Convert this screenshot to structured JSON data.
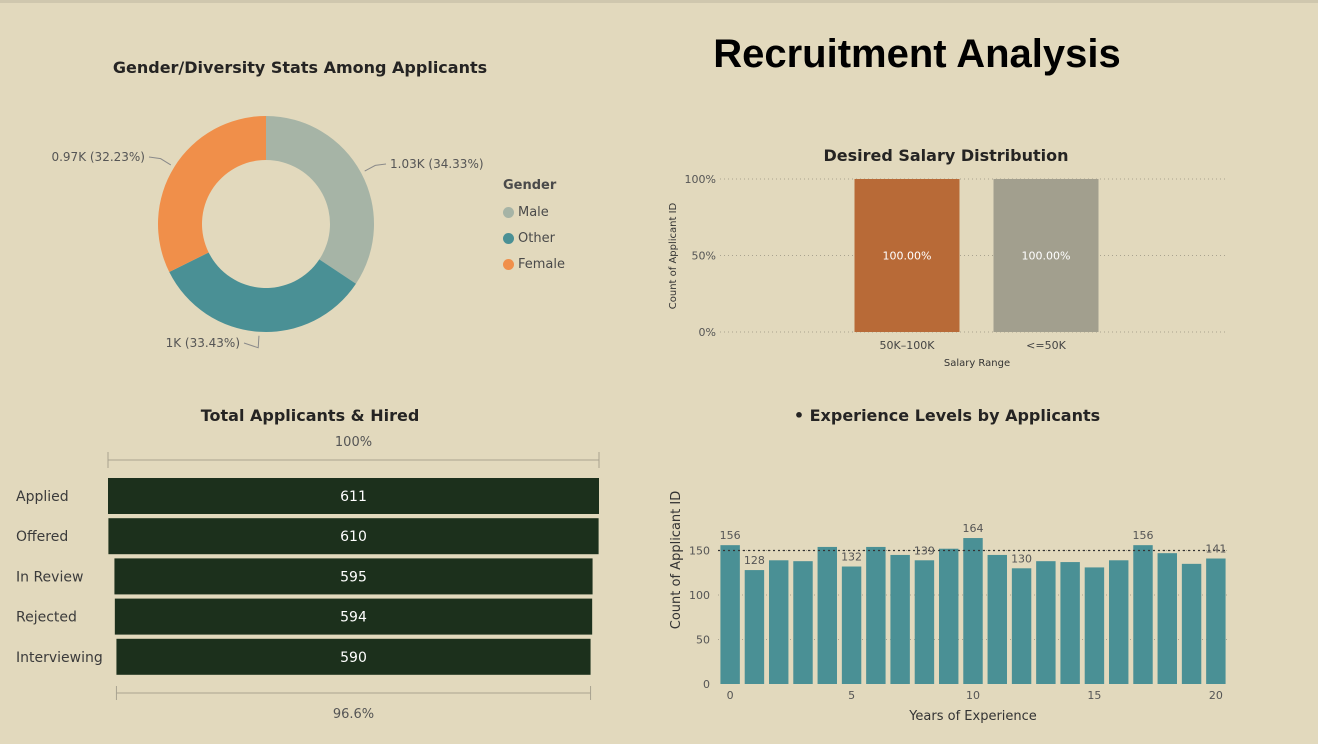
{
  "page": {
    "title": "Recruitment Analysis"
  },
  "gender_chart": {
    "title": "Gender/Diversity Stats Among Applicants",
    "legend_title": "Gender"
  },
  "salary_chart": {
    "title": "Desired Salary Distribution",
    "xlabel": "Salary Range",
    "ylabel": "Count of Applicant ID",
    "yticks": [
      "0%",
      "50%",
      "100%"
    ]
  },
  "funnel_chart": {
    "title": "Total Applicants & Hired",
    "top_label": "100%",
    "bottom_label": "96.6%"
  },
  "experience_chart": {
    "title": "• Experience Levels by Applicants",
    "xlabel": "Years of Experience",
    "ylabel": "Count of Applicant ID"
  },
  "chart_data": [
    {
      "type": "pie",
      "donut": true,
      "title": "Gender/Diversity Stats Among Applicants",
      "legend_title": "Gender",
      "legend_position": "right",
      "slices": [
        {
          "name": "Male",
          "value": 1.03,
          "label": "1.03K (34.33%)",
          "color": "#a6b4a6"
        },
        {
          "name": "Other",
          "value": 1.0,
          "label": "1K (33.43%)",
          "color": "#4a9095"
        },
        {
          "name": "Female",
          "value": 0.97,
          "label": "0.97K (32.23%)",
          "color": "#f08f4a"
        }
      ]
    },
    {
      "type": "bar",
      "stacked_percent": true,
      "title": "Desired Salary Distribution",
      "xlabel": "Salary Range",
      "ylabel": "Count of Applicant ID",
      "categories": [
        "50K–100K",
        "<=50K"
      ],
      "values": [
        100,
        100
      ],
      "data_labels": [
        "100.00%",
        "100.00%"
      ],
      "colors": [
        "#b86a37",
        "#a29f8e"
      ],
      "ylim": [
        0,
        100
      ],
      "grid": true
    },
    {
      "type": "bar",
      "orientation": "funnel",
      "title": "Total Applicants & Hired",
      "categories": [
        "Applied",
        "Offered",
        "In Review",
        "Rejected",
        "Interviewing"
      ],
      "values": [
        611,
        610,
        595,
        594,
        590
      ],
      "top_label": "100%",
      "bottom_label": "96.6%",
      "color": "#1c301c"
    },
    {
      "type": "bar",
      "title": "• Experience Levels by Applicants",
      "xlabel": "Years of Experience",
      "ylabel": "Count of Applicant ID",
      "x": [
        0,
        1,
        2,
        3,
        4,
        5,
        6,
        7,
        8,
        9,
        10,
        11,
        12,
        13,
        14,
        15,
        16,
        17,
        18,
        19,
        20
      ],
      "values": [
        156,
        128,
        139,
        138,
        154,
        132,
        154,
        145,
        139,
        152,
        164,
        145,
        130,
        138,
        137,
        131,
        139,
        156,
        147,
        135,
        141
      ],
      "data_labels": {
        "0": "156",
        "1": "128",
        "5": "132",
        "8": "139",
        "10": "164",
        "12": "130",
        "17": "156",
        "20": "141"
      },
      "xticks": [
        0,
        5,
        10,
        15,
        20
      ],
      "yticks": [
        0,
        50,
        100,
        150
      ],
      "ylim": [
        0,
        180
      ],
      "reference_line": 150,
      "color": "#4a9095",
      "grid": true
    }
  ]
}
